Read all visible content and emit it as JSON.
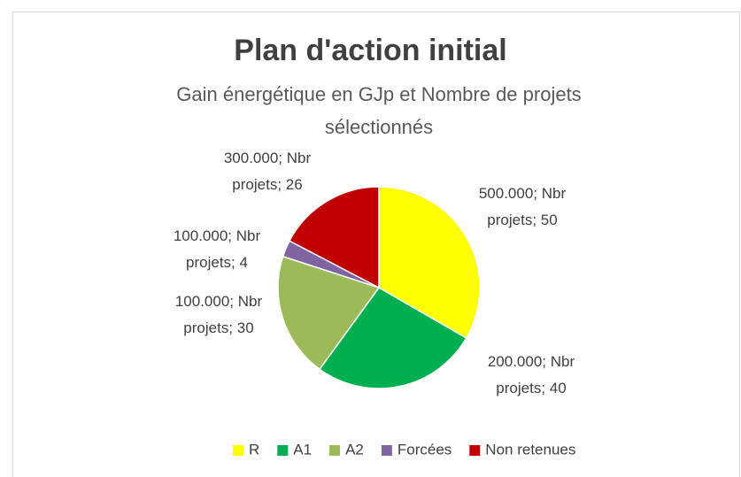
{
  "chart_data": {
    "type": "pie",
    "title": "Plan d'action initial",
    "subtitle": "Gain énergétique en GJp et Nombre de projets sélectionnés",
    "categories": [
      "R",
      "A1",
      "A2",
      "Forcées",
      "Non retenues"
    ],
    "values": [
      50,
      40,
      30,
      4,
      26
    ],
    "value_labels": [
      "500.000; Nbr projets; 50",
      "200.000; Nbr projets; 40",
      "100.000; Nbr projets; 30",
      "100.000; Nbr projets; 4",
      "300.000; Nbr projets; 26"
    ],
    "colors": [
      "#FFFF00",
      "#00B050",
      "#9BBB59",
      "#8064A2",
      "#C00000"
    ],
    "legend": "bottom"
  }
}
